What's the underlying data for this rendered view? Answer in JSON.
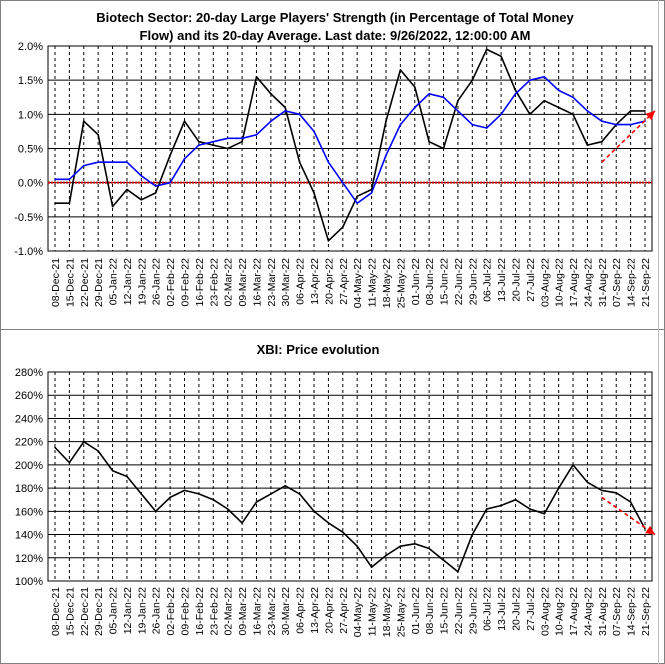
{
  "chart_data": [
    {
      "type": "line",
      "title_lines": [
        "Biotech Sector: 20-day Large Players' Strength (in Percentage of Total Money",
        "Flow) and its 20-day Average. Last date: 9/26/2022, 12:00:00 AM"
      ],
      "ylim": [
        -1.0,
        2.0
      ],
      "yticks": [
        "-1.0%",
        "-0.5%",
        "0.0%",
        "0.5%",
        "1.0%",
        "1.5%",
        "2.0%"
      ],
      "ytick_values": [
        -1.0,
        -0.5,
        0.0,
        0.5,
        1.0,
        1.5,
        2.0
      ],
      "grid": true,
      "categories": [
        "08-Dec-21",
        "15-Dec-21",
        "22-Dec-21",
        "29-Dec-21",
        "05-Jan-22",
        "12-Jan-22",
        "19-Jan-22",
        "26-Jan-22",
        "02-Feb-22",
        "09-Feb-22",
        "16-Feb-22",
        "23-Feb-22",
        "02-Mar-22",
        "09-Mar-22",
        "16-Mar-22",
        "23-Mar-22",
        "30-Mar-22",
        "06-Apr-22",
        "13-Apr-22",
        "20-Apr-22",
        "27-Apr-22",
        "04-May-22",
        "11-May-22",
        "18-May-22",
        "25-May-22",
        "01-Jun-22",
        "08-Jun-22",
        "15-Jun-22",
        "22-Jun-22",
        "29-Jun-22",
        "06-Jul-22",
        "13-Jul-22",
        "20-Jul-22",
        "27-Jul-22",
        "03-Aug-22",
        "10-Aug-22",
        "17-Aug-22",
        "24-Aug-22",
        "31-Aug-22",
        "07-Sep-22",
        "14-Sep-22",
        "21-Sep-22"
      ],
      "xticks_shown": [
        "08-Dec-21",
        "15-Dec-21",
        "22-Dec-21",
        "29-Dec-21",
        "05-Jan-22",
        "12-Jan-22",
        "19-Jan-22",
        "26-Jan-22",
        "02-Feb-22",
        "09-Feb-22",
        "16-Feb-22",
        "23-Feb-22",
        "02-Mar-22",
        "09-Mar-22",
        "16-Mar-22",
        "23-Mar-22",
        "30-Mar-22",
        "06-Apr-22",
        "13-Apr-22",
        "20-Apr-22",
        "27-Apr-22",
        "04-May-22",
        "11-May-22",
        "18-May-22",
        "25-May-22",
        "01-Jun-22",
        "08-Jun-22",
        "15-Jun-22",
        "22-Jun-22",
        "29-Jun-22",
        "06-Jul-22",
        "13-Jul-22",
        "20-Jul-22",
        "27-Jul-22",
        "03-Aug-22",
        "10-Aug-22",
        "17-Aug-22",
        "24-Aug-22",
        "31-Aug-22",
        "07-Sep-22",
        "14-Sep-22",
        "21-Sep-22"
      ],
      "series": [
        {
          "color": "#000000",
          "values": [
            -0.3,
            -0.3,
            0.9,
            0.7,
            -0.35,
            -0.1,
            -0.25,
            -0.15,
            0.4,
            0.9,
            0.6,
            0.55,
            0.5,
            0.6,
            1.55,
            1.3,
            1.1,
            0.3,
            -0.15,
            -0.85,
            -0.65,
            -0.2,
            -0.1,
            0.9,
            1.65,
            1.4,
            0.6,
            0.5,
            1.2,
            1.5,
            1.95,
            1.85,
            1.35,
            1.0,
            1.2,
            1.1,
            1.0,
            0.55,
            0.6,
            0.85,
            1.05,
            1.05
          ]
        },
        {
          "color": "#0000ff",
          "values": [
            0.05,
            0.05,
            0.25,
            0.3,
            0.3,
            0.3,
            0.1,
            -0.05,
            0.0,
            0.35,
            0.55,
            0.6,
            0.65,
            0.65,
            0.7,
            0.9,
            1.05,
            1.0,
            0.75,
            0.3,
            0.0,
            -0.3,
            -0.15,
            0.4,
            0.85,
            1.1,
            1.3,
            1.25,
            1.05,
            0.85,
            0.8,
            1.0,
            1.3,
            1.5,
            1.55,
            1.35,
            1.25,
            1.05,
            0.9,
            0.85,
            0.85,
            0.9
          ]
        }
      ],
      "zero_line_color": "#cc0000",
      "trend_arrow": {
        "color": "#ff0000",
        "from": [
          "31-Aug-22",
          0.3
        ],
        "to": [
          "21-Sep-22",
          1.05
        ]
      }
    },
    {
      "type": "line",
      "title_lines": [
        "XBI: Price evolution"
      ],
      "ylim": [
        100,
        280
      ],
      "yticks": [
        "100%",
        "120%",
        "140%",
        "160%",
        "180%",
        "200%",
        "220%",
        "240%",
        "260%",
        "280%"
      ],
      "ytick_values": [
        100,
        120,
        140,
        160,
        180,
        200,
        220,
        240,
        260,
        280
      ],
      "grid": true,
      "categories": [
        "08-Dec-21",
        "15-Dec-21",
        "22-Dec-21",
        "29-Dec-21",
        "05-Jan-22",
        "12-Jan-22",
        "19-Jan-22",
        "26-Jan-22",
        "02-Feb-22",
        "09-Feb-22",
        "16-Feb-22",
        "23-Feb-22",
        "02-Mar-22",
        "09-Mar-22",
        "16-Mar-22",
        "23-Mar-22",
        "30-Mar-22",
        "06-Apr-22",
        "13-Apr-22",
        "20-Apr-22",
        "27-Apr-22",
        "04-May-22",
        "11-May-22",
        "18-May-22",
        "25-May-22",
        "01-Jun-22",
        "08-Jun-22",
        "15-Jun-22",
        "22-Jun-22",
        "29-Jun-22",
        "06-Jul-22",
        "13-Jul-22",
        "20-Jul-22",
        "27-Jul-22",
        "03-Aug-22",
        "10-Aug-22",
        "17-Aug-22",
        "24-Aug-22",
        "31-Aug-22",
        "07-Sep-22",
        "14-Sep-22",
        "21-Sep-22"
      ],
      "xticks_shown": [
        "08-Dec-21",
        "15-Dec-21",
        "22-Dec-21",
        "29-Dec-21",
        "05-Jan-22",
        "12-Jan-22",
        "19-Jan-22",
        "26-Jan-22",
        "02-Feb-22",
        "09-Feb-22",
        "16-Feb-22",
        "23-Feb-22",
        "02-Mar-22",
        "09-Mar-22",
        "16-Mar-22",
        "23-Mar-22",
        "30-Mar-22",
        "06-Apr-22",
        "13-Apr-22",
        "20-Apr-22",
        "27-Apr-22",
        "04-May-22",
        "11-May-22",
        "18-May-22",
        "25-May-22",
        "01-Jun-22",
        "08-Jun-22",
        "15-Jun-22",
        "22-Jun-22",
        "29-Jun-22",
        "06-Jul-22",
        "13-Jul-22",
        "20-Jul-22",
        "27-Jul-22",
        "03-Aug-22",
        "10-Aug-22",
        "17-Aug-22",
        "24-Aug-22",
        "31-Aug-22",
        "07-Sep-22",
        "14-Sep-22",
        "21-Sep-22"
      ],
      "series": [
        {
          "color": "#000000",
          "values": [
            215,
            202,
            220,
            212,
            195,
            190,
            175,
            160,
            172,
            178,
            175,
            170,
            162,
            150,
            168,
            175,
            182,
            175,
            160,
            150,
            142,
            130,
            112,
            122,
            130,
            132,
            128,
            118,
            108,
            140,
            162,
            165,
            170,
            162,
            158,
            180,
            200,
            185,
            178,
            176,
            168,
            145
          ]
        }
      ],
      "trend_arrow": {
        "color": "#ff0000",
        "from": [
          "31-Aug-22",
          172
        ],
        "to": [
          "21-Sep-22",
          140
        ]
      }
    }
  ]
}
